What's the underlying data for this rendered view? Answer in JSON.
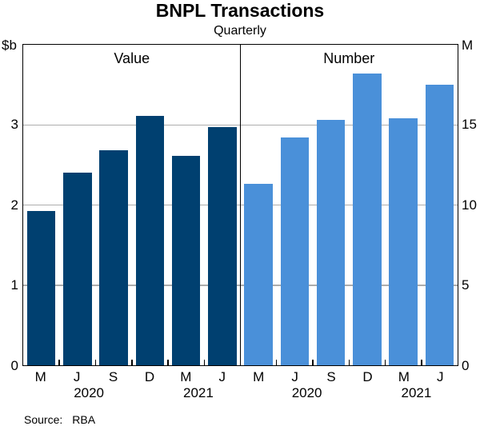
{
  "page": {
    "title": "BNPL Transactions",
    "subtitle": "Quarterly",
    "source_label": "Source:",
    "source_value": "RBA"
  },
  "colors": {
    "value_bars": "#004070",
    "number_bars": "#4a90d9",
    "gridline": "#adadad",
    "axis_frame": "#000000"
  },
  "chart_data": [
    {
      "type": "bar",
      "panel": "left",
      "panel_title": "Value",
      "unit_label": "$b",
      "unit_side": "left",
      "categories": [
        "M",
        "J",
        "S",
        "D",
        "M",
        "J"
      ],
      "year_labels": [
        "2020",
        "2021"
      ],
      "values": [
        1.93,
        2.4,
        2.68,
        3.11,
        2.61,
        2.97
      ],
      "ylim": [
        0,
        4
      ],
      "yticks": [
        0,
        1,
        2,
        3
      ],
      "bar_color": "#004070",
      "grid": true,
      "legend": "none"
    },
    {
      "type": "bar",
      "panel": "right",
      "panel_title": "Number",
      "unit_label": "M",
      "unit_side": "right",
      "categories": [
        "M",
        "J",
        "S",
        "D",
        "M",
        "J"
      ],
      "year_labels": [
        "2020",
        "2021"
      ],
      "values": [
        11.3,
        14.2,
        15.3,
        18.2,
        15.4,
        17.5
      ],
      "ylim": [
        0,
        20
      ],
      "yticks": [
        0,
        5,
        10,
        15
      ],
      "bar_color": "#4a90d9",
      "grid": true,
      "legend": "none"
    }
  ]
}
